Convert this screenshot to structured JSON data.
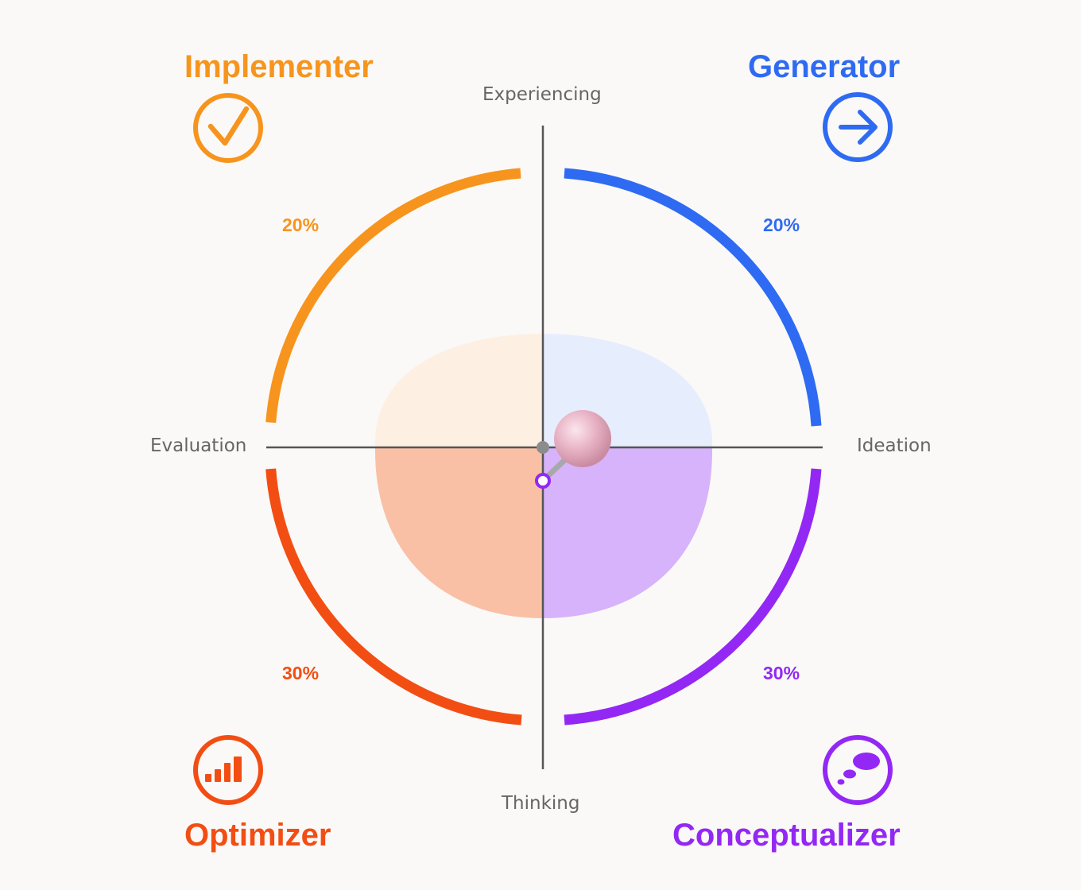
{
  "quadrants": {
    "implementer": {
      "title": "Implementer",
      "percent": "20%",
      "share": 0.2,
      "color": "#f7941d",
      "fill": "#fdf0e2",
      "icon": "check-circle-icon"
    },
    "generator": {
      "title": "Generator",
      "percent": "20%",
      "share": 0.2,
      "color": "#2f6bf2",
      "fill": "#e6edfc",
      "icon": "arrow-right-circle-icon"
    },
    "optimizer": {
      "title": "Optimizer",
      "percent": "30%",
      "share": 0.3,
      "color": "#f24e13",
      "fill": "#f9c0a6",
      "icon": "bar-chart-circle-icon"
    },
    "conceptualizer": {
      "title": "Conceptualizer",
      "percent": "30%",
      "share": 0.3,
      "color": "#9328f5",
      "fill": "#d7b3fb",
      "icon": "thought-bubble-circle-icon"
    }
  },
  "axes": {
    "top": "Experiencing",
    "bottom": "Thinking",
    "left": "Evaluation",
    "right": "Ideation"
  },
  "pin": {
    "head_color": "#e9b3c4",
    "needle_color": "#a8a8a8",
    "base_color": "#9328f5"
  },
  "axis_color": "#555555"
}
